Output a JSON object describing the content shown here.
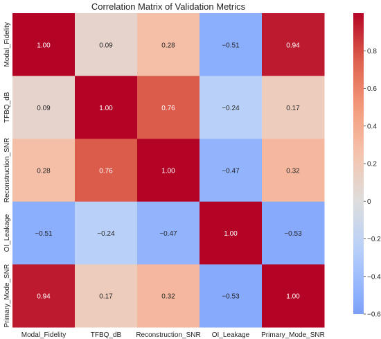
{
  "chart_data": {
    "type": "heatmap",
    "title": "Correlation Matrix of Validation Metrics",
    "row_labels": [
      "Modal_Fidelity",
      "TFBQ_dB",
      "Reconstruction_SNR",
      "OI_Leakage",
      "Primary_Mode_SNR"
    ],
    "col_labels": [
      "Modal_Fidelity",
      "TFBQ_dB",
      "Reconstruction_SNR",
      "OI_Leakage",
      "Primary_Mode_SNR"
    ],
    "values": [
      [
        1.0,
        0.09,
        0.28,
        -0.51,
        0.94
      ],
      [
        0.09,
        1.0,
        0.76,
        -0.24,
        0.17
      ],
      [
        0.28,
        0.76,
        1.0,
        -0.47,
        0.32
      ],
      [
        -0.51,
        -0.24,
        -0.47,
        1.0,
        -0.53
      ],
      [
        0.94,
        0.17,
        0.32,
        -0.53,
        1.0
      ]
    ],
    "value_labels": [
      [
        "1.00",
        "0.09",
        "0.28",
        "−0.51",
        "0.94"
      ],
      [
        "0.09",
        "1.00",
        "0.76",
        "−0.24",
        "0.17"
      ],
      [
        "0.28",
        "0.76",
        "1.00",
        "−0.47",
        "0.32"
      ],
      [
        "−0.51",
        "−0.24",
        "−0.47",
        "1.00",
        "−0.53"
      ],
      [
        "0.94",
        "0.17",
        "0.32",
        "−0.53",
        "1.00"
      ]
    ],
    "colormap": "coolwarm",
    "vmin": -0.6,
    "vmax": 1.0,
    "colorbar_ticks": [
      0.8,
      0.6,
      0.4,
      0.2,
      0,
      -0.2,
      -0.4,
      -0.6
    ],
    "colorbar_tick_labels": [
      "0.8",
      "0.6",
      "0.4",
      "0.2",
      "0",
      "−0.2",
      "−0.4",
      "−0.6"
    ],
    "colorbar_position": "right",
    "grid": false
  }
}
